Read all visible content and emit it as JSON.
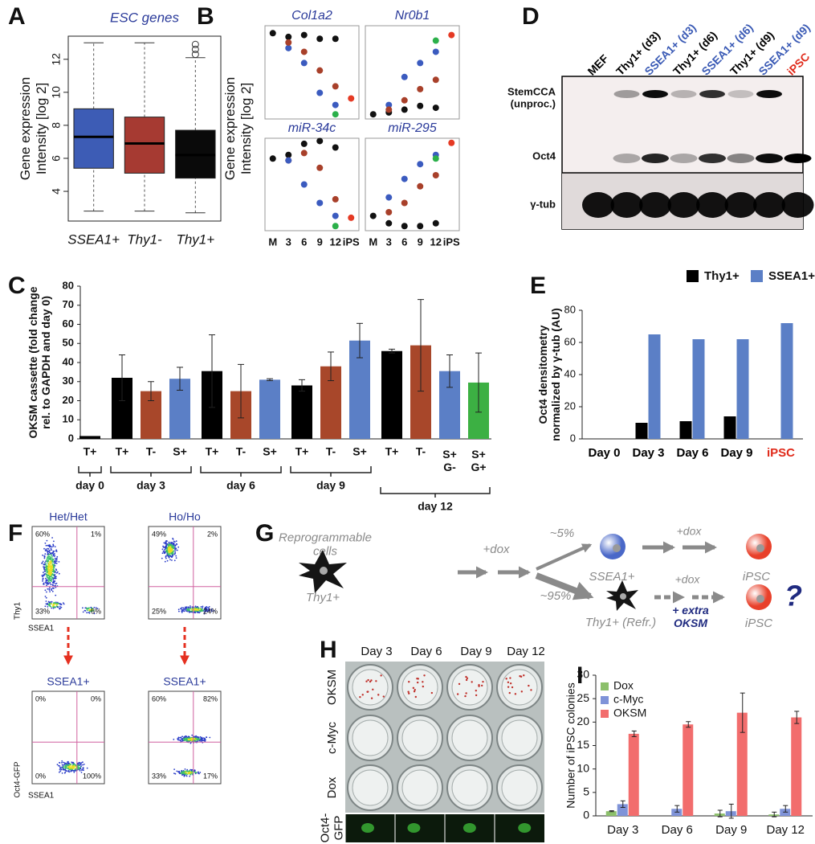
{
  "chart_data": [
    {
      "panel": "A",
      "type": "box",
      "title": "ESC genes",
      "ylabel": "Gene expression\nIntensity [log 2]",
      "categories": [
        "SSEA1+",
        "Thy1-",
        "Thy1+"
      ],
      "colors": [
        "#3d5cb5",
        "#a63a32",
        "#0a0a0a"
      ],
      "boxes": [
        {
          "whislo": 2.8,
          "q1": 5.4,
          "med": 7.3,
          "q3": 9.0,
          "whishi": 13.0
        },
        {
          "whislo": 2.8,
          "q1": 5.1,
          "med": 6.9,
          "q3": 8.5,
          "whishi": 13.0
        },
        {
          "whislo": 2.7,
          "q1": 4.8,
          "med": 6.2,
          "q3": 7.7,
          "whishi": 12.1,
          "fliers": [
            12.3,
            12.6,
            12.9
          ]
        }
      ],
      "ylim": [
        2.2,
        13.4
      ],
      "yticks": [
        4,
        6,
        8,
        10,
        12
      ]
    },
    {
      "panel": "B",
      "type": "scatter",
      "title": "Col1a2",
      "ylabel": "Gene expression\nIntensity [log 2]",
      "ylim": [
        0,
        1
      ],
      "series": [
        {
          "color": "#111111",
          "values": [
            0.92,
            0.88,
            0.9,
            0.86,
            0.86,
            null
          ]
        },
        {
          "color": "#3b5bbf",
          "values": [
            null,
            0.76,
            0.6,
            0.28,
            0.15,
            null
          ]
        },
        {
          "color": "#a8402a",
          "values": [
            null,
            0.82,
            0.72,
            0.52,
            0.35,
            null
          ]
        },
        {
          "color": "#2bb04a",
          "values": [
            null,
            null,
            null,
            null,
            0.05,
            null
          ]
        },
        {
          "color": "#e53a24",
          "values": [
            null,
            null,
            null,
            null,
            null,
            0.22
          ]
        }
      ]
    },
    {
      "type": "scatter",
      "title": "Nr0b1",
      "ylim": [
        0,
        1
      ],
      "series": [
        {
          "color": "#111111",
          "values": [
            0.05,
            0.07,
            0.1,
            0.14,
            0.12,
            null
          ]
        },
        {
          "color": "#3b5bbf",
          "values": [
            null,
            0.15,
            0.45,
            0.6,
            0.72,
            null
          ]
        },
        {
          "color": "#a8402a",
          "values": [
            null,
            0.1,
            0.2,
            0.32,
            0.42,
            null
          ]
        },
        {
          "color": "#2bb04a",
          "values": [
            null,
            null,
            null,
            null,
            0.84,
            null
          ]
        },
        {
          "color": "#e53a24",
          "values": [
            null,
            null,
            null,
            null,
            null,
            0.9
          ]
        }
      ]
    },
    {
      "type": "scatter",
      "title": "miR-34c",
      "ylim": [
        0,
        1
      ],
      "categories": [
        "M",
        "3",
        "6",
        "9",
        "12",
        "iPS"
      ],
      "series": [
        {
          "color": "#111111",
          "values": [
            0.78,
            0.82,
            0.94,
            0.97,
            0.9,
            null
          ]
        },
        {
          "color": "#a8402a",
          "values": [
            null,
            0.76,
            0.84,
            0.68,
            0.34,
            null
          ]
        },
        {
          "color": "#3b5bbf",
          "values": [
            null,
            0.76,
            0.5,
            0.3,
            0.16,
            null
          ]
        },
        {
          "color": "#2bb04a",
          "values": [
            null,
            null,
            null,
            null,
            0.05,
            null
          ]
        },
        {
          "color": "#e53a24",
          "values": [
            null,
            null,
            null,
            null,
            null,
            0.14
          ]
        }
      ]
    },
    {
      "type": "scatter",
      "title": "miR-295",
      "ylim": [
        0,
        1
      ],
      "categories": [
        "M",
        "3",
        "6",
        "9",
        "12",
        "iPS"
      ],
      "series": [
        {
          "color": "#111111",
          "values": [
            0.16,
            0.08,
            0.05,
            0.05,
            0.08,
            null
          ]
        },
        {
          "color": "#3b5bbf",
          "values": [
            null,
            0.36,
            0.56,
            0.72,
            0.82,
            null
          ]
        },
        {
          "color": "#a8402a",
          "values": [
            null,
            0.2,
            0.3,
            0.48,
            0.6,
            null
          ]
        },
        {
          "color": "#2bb04a",
          "values": [
            null,
            null,
            null,
            null,
            0.78,
            null
          ]
        },
        {
          "color": "#e53a24",
          "values": [
            null,
            null,
            null,
            null,
            null,
            0.95
          ]
        }
      ]
    },
    {
      "panel": "C",
      "type": "grouped-bar",
      "ylabel": "OKSM cassette (fold change\nrel. to GAPDH and day 0)",
      "ylim": [
        0,
        80
      ],
      "yticks": [
        0,
        10,
        20,
        30,
        40,
        50,
        60,
        70,
        80
      ],
      "groups": [
        {
          "name": "day 0",
          "categories": [
            "T+"
          ],
          "values": [
            1.5
          ],
          "errors": [
            null
          ],
          "colors": [
            "#000000"
          ]
        },
        {
          "name": "day 3",
          "categories": [
            "T+",
            "T-",
            "S+"
          ],
          "values": [
            32,
            25,
            31.5
          ],
          "errors": [
            12,
            5,
            6
          ],
          "colors": [
            "#000000",
            "#a8472a",
            "#5b7fc6"
          ]
        },
        {
          "name": "day 6",
          "categories": [
            "T+",
            "T-",
            "S+"
          ],
          "values": [
            35.5,
            25,
            31
          ],
          "errors": [
            19,
            14,
            0.5
          ],
          "colors": [
            "#000000",
            "#a8472a",
            "#5b7fc6"
          ]
        },
        {
          "name": "day 9",
          "categories": [
            "T+",
            "T-",
            "S+"
          ],
          "values": [
            28,
            38,
            51.5
          ],
          "errors": [
            3,
            7.5,
            9
          ],
          "colors": [
            "#000000",
            "#a8472a",
            "#5b7fc6"
          ]
        },
        {
          "name": "day 12",
          "categories": [
            "T+",
            "T-",
            "S+\nG-",
            "S+\nG+"
          ],
          "values": [
            46,
            49,
            35.5,
            29.5
          ],
          "errors": [
            1,
            24,
            8.5,
            15.5
          ],
          "colors": [
            "#000000",
            "#a8472a",
            "#5b7fc6",
            "#3cb043"
          ]
        }
      ]
    },
    {
      "panel": "E",
      "type": "bar",
      "ylabel": "Oct4 densitometry\nnormalized by γ-tub (AU)",
      "categories": [
        "Day 0",
        "Day 3",
        "Day 6",
        "Day 9",
        "iPSC"
      ],
      "category_colors": [
        "#000000",
        "#000000",
        "#000000",
        "#000000",
        "#e02a1a"
      ],
      "legend": "top",
      "ylim": [
        0,
        80
      ],
      "yticks": [
        0,
        20,
        40,
        60,
        80
      ],
      "series": [
        {
          "name": "Thy1+",
          "color": "#000000",
          "values": [
            null,
            10,
            11,
            14,
            null
          ]
        },
        {
          "name": "SSEA1+",
          "color": "#5b7fc6",
          "values": [
            null,
            65,
            62,
            62,
            72
          ]
        }
      ]
    },
    {
      "panel": "I",
      "type": "bar",
      "ylabel": "Number of iPSC colonies",
      "categories": [
        "Day 3",
        "Day 6",
        "Day 9",
        "Day 12"
      ],
      "legend": "upper left",
      "ylim": [
        0,
        30
      ],
      "yticks": [
        0,
        5,
        10,
        15,
        20,
        25,
        30
      ],
      "series": [
        {
          "name": "Dox",
          "color": "#8cc06b",
          "values": [
            1,
            0,
            0.5,
            0.3
          ],
          "errors": [
            0.1,
            0,
            0.7,
            0.5
          ]
        },
        {
          "name": "c-Myc",
          "color": "#7f93d8",
          "values": [
            2.5,
            1.5,
            1,
            1.5
          ],
          "errors": [
            0.7,
            0.7,
            1.5,
            0.7
          ]
        },
        {
          "name": "OKSM",
          "color": "#f26d6d",
          "values": [
            17.5,
            19.5,
            22,
            21
          ],
          "errors": [
            0.6,
            0.6,
            4.2,
            1.3
          ]
        }
      ]
    }
  ],
  "blot": {
    "panel": "D",
    "lanes": [
      "MEF",
      "Thy1+ (d3)",
      "SSEA1+ (d3)",
      "Thy1+ (d6)",
      "SSEA1+ (d6)",
      "Thy1+ (d9)",
      "SSEA1+ (d9)",
      "iPSC"
    ],
    "lane_colors": [
      "#000000",
      "#000000",
      "#3a5ab5",
      "#000000",
      "#3a5ab5",
      "#000000",
      "#3a5ab5",
      "#e02a1a"
    ],
    "rows": [
      "StemCCA\n(unproc.)",
      "Oct4",
      "γ-tub"
    ]
  },
  "flow": {
    "panel": "F",
    "plots": [
      {
        "title": "Het/Het",
        "quadrants": [
          "60%",
          "1%",
          "33%",
          "6%"
        ]
      },
      {
        "title": "Ho/Ho",
        "quadrants": [
          "49%",
          "2%",
          "25%",
          "24%"
        ]
      },
      {
        "title": "SSEA1+",
        "quadrants": [
          "0%",
          "0%",
          "0%",
          "100%"
        ]
      },
      {
        "title": "SSEA1+",
        "quadrants": [
          "60%",
          "82%",
          "33%",
          "17%"
        ]
      }
    ],
    "axes": {
      "top_y": "Thy1",
      "top_x": "SSEA1",
      "bottom_y": "Oct4-GFP",
      "bottom_x": "SSEA1"
    }
  },
  "diagram": {
    "panel": "G",
    "start": "Reprogrammable\ncells",
    "dox1": "+dox",
    "thy": "Thy1+",
    "p5": "~5%",
    "p95": "~95%",
    "ssea": "SSEA1+",
    "dox2": "+dox",
    "ipsc1": "iPSC",
    "refr": "Thy1+ (Refr.)",
    "dox3": "+dox",
    "extra": "+ extra\nOKSM",
    "ipsc2": "iPSC",
    "q": "?"
  },
  "wells": {
    "panel": "H",
    "columns": [
      "Day 3",
      "Day 6",
      "Day 9",
      "Day 12"
    ],
    "rows": [
      "OKSM",
      "c-Myc",
      "Dox",
      "Oct4-\nGFP"
    ]
  }
}
